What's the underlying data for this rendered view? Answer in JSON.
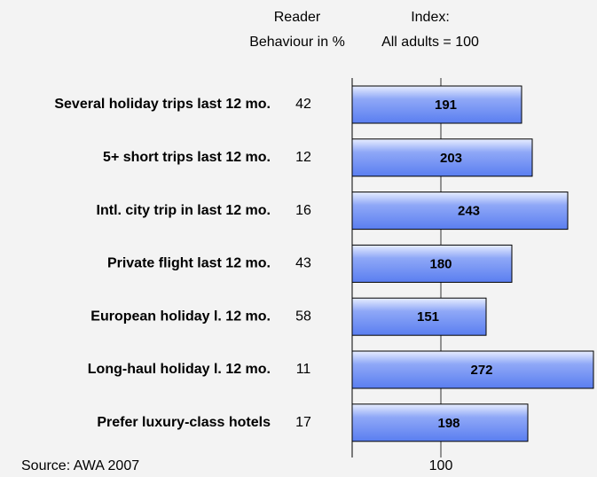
{
  "chart_data": {
    "type": "bar",
    "pct_header": [
      "Reader",
      "Behaviour in %"
    ],
    "index_header": [
      "Index:",
      "All adults = 100"
    ],
    "categories": [
      "Several holiday trips last 12 mo.",
      "5+ short trips last 12 mo.",
      "Intl. city trip in last 12 mo.",
      "Private flight last 12 mo.",
      "European holiday l. 12 mo.",
      "Long-haul holiday l. 12 mo.",
      "Prefer luxury-class hotels"
    ],
    "percentages": [
      42,
      12,
      16,
      43,
      58,
      11,
      17
    ],
    "values": [
      191,
      203,
      243,
      180,
      151,
      272,
      198
    ],
    "color": "#5a7ef0",
    "xlim": [
      0,
      276
    ],
    "xticks": [
      100
    ],
    "grid": true,
    "source": "Source: AWA 2007"
  }
}
